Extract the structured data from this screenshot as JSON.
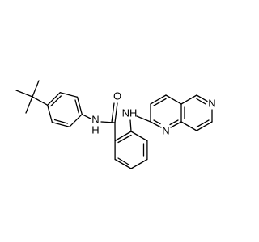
{
  "atoms": [
    {
      "label": "O"
    },
    {
      "label": "N"
    },
    {
      "label": "H"
    },
    {
      "label": "NH"
    },
    {
      "label": "N"
    },
    {
      "label": "N"
    }
  ]
}
